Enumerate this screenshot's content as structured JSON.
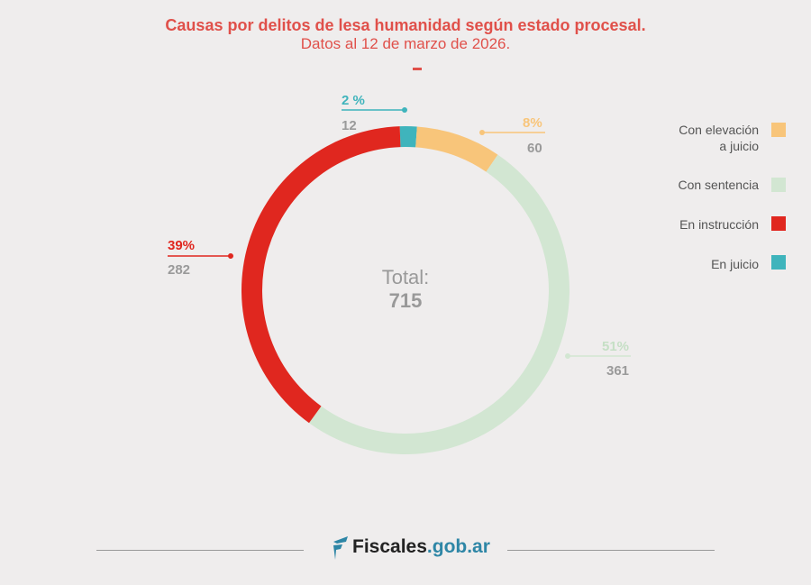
{
  "chart_data": {
    "type": "pie",
    "title": "Causas por delitos de lesa humanidad según estado procesal.",
    "subtitle": "Datos al 12 de marzo de 2026.",
    "total_label": "Total:",
    "total_value": "715",
    "slices": [
      {
        "name": "En juicio",
        "value": 12,
        "percent_label": "2 %",
        "color": "#3fb4bc"
      },
      {
        "name": "Con elevación a juicio",
        "value": 60,
        "percent_label": "8%",
        "color": "#f8c57a"
      },
      {
        "name": "Con sentencia",
        "value": 361,
        "percent_label": "51%",
        "color": "#d2e6d2"
      },
      {
        "name": "En instrucción",
        "value": 282,
        "percent_label": "39%",
        "color": "#e0271f"
      }
    ],
    "legend": [
      {
        "label_line1": "Con elevación",
        "label_line2": "a juicio",
        "color": "#f8c57a"
      },
      {
        "label_line1": "Con sentencia",
        "color": "#d2e6d2"
      },
      {
        "label_line1": "En instrucción",
        "color": "#e0271f"
      },
      {
        "label_line1": "En juicio",
        "color": "#3fb4bc"
      }
    ],
    "legend_position": "right"
  },
  "footer": {
    "logo_main": "Fiscales",
    "logo_suffix": ".gob.ar"
  }
}
